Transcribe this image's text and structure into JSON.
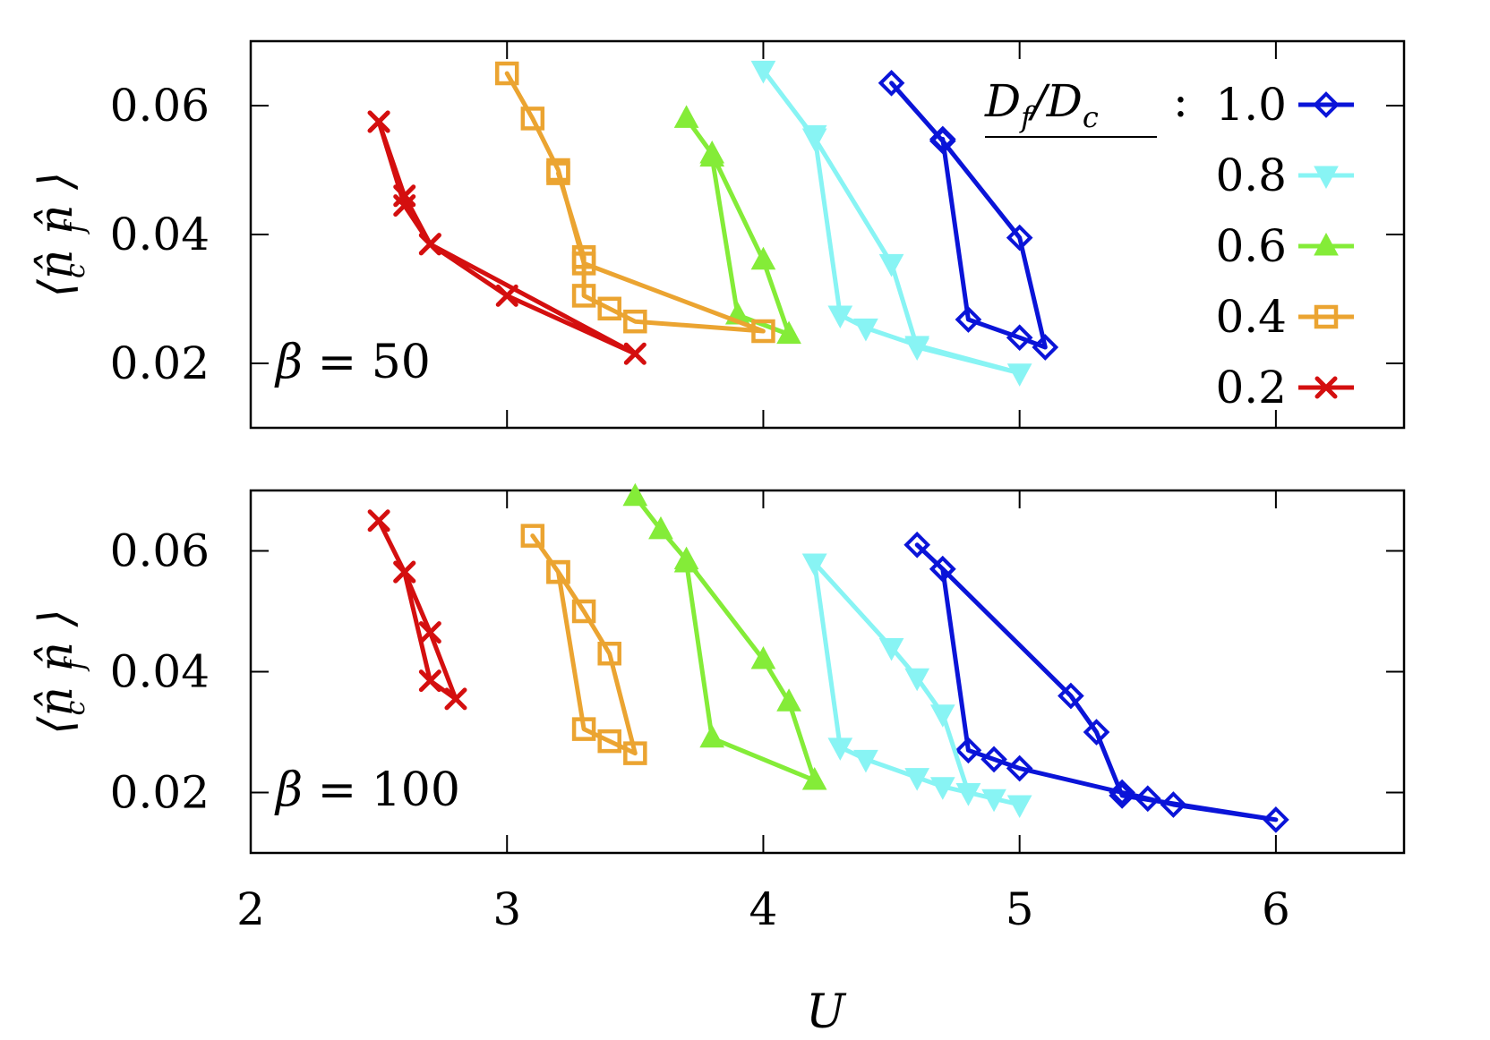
{
  "chart_data": [
    {
      "type": "line",
      "panel": "top",
      "annotation": {
        "symbol": "β",
        "text": " = 50"
      },
      "ylabel": "⟨n̂ n̂ ⟩",
      "ylabel_parts": {
        "c": "c",
        "f": "f"
      },
      "xlabel": "",
      "xlim": [
        2,
        6.5
      ],
      "ylim": [
        0.01,
        0.07
      ],
      "yticks": [
        0.02,
        0.04,
        0.06
      ],
      "ytick_labels": [
        "0.02",
        "0.04",
        "0.06"
      ],
      "xticks": [
        2,
        3,
        4,
        5,
        6
      ],
      "show_xtick_labels": false,
      "grid": false,
      "legend": {
        "title": "D",
        "title_parts": {
          "f_sub": "f",
          "slash": "/D",
          "c_sub": "c",
          "colon": ":"
        },
        "placement": "top-right"
      },
      "series": [
        {
          "name": "1.0",
          "color": "#0a14d8",
          "marker": "diamond",
          "x": [
            4.5,
            4.7,
            5.0,
            5.1,
            5.0,
            4.8,
            4.7
          ],
          "y": [
            0.0635,
            0.0545,
            0.0395,
            0.0225,
            0.024,
            0.0268,
            0.0548
          ]
        },
        {
          "name": "0.8",
          "color": "#88f4f4",
          "marker": "triangle-down",
          "x": [
            4.0,
            4.2,
            4.5,
            4.6,
            5.0,
            4.6,
            4.4,
            4.3,
            4.2
          ],
          "y": [
            0.0655,
            0.055,
            0.0355,
            0.0225,
            0.0185,
            0.0228,
            0.0255,
            0.0275,
            0.0555
          ]
        },
        {
          "name": "0.6",
          "color": "#84ec38",
          "marker": "triangle-up",
          "x": [
            3.7,
            3.8,
            4.0,
            4.1,
            3.9,
            3.8
          ],
          "y": [
            0.058,
            0.0525,
            0.036,
            0.0245,
            0.0275,
            0.052
          ]
        },
        {
          "name": "0.4",
          "color": "#eba431",
          "marker": "square",
          "x": [
            3.0,
            3.1,
            3.2,
            3.3,
            4.0,
            3.5,
            3.4,
            3.3,
            3.3,
            3.2
          ],
          "y": [
            0.065,
            0.058,
            0.05,
            0.0355,
            0.025,
            0.0265,
            0.0285,
            0.0305,
            0.0365,
            0.0495
          ]
        },
        {
          "name": "0.2",
          "color": "#d40f0f",
          "marker": "cross",
          "x": [
            2.5,
            2.6,
            2.7,
            3.0,
            3.5,
            2.7,
            2.6,
            2.5
          ],
          "y": [
            0.0575,
            0.046,
            0.0385,
            0.0305,
            0.0215,
            0.0385,
            0.0445,
            0.0575
          ]
        }
      ]
    },
    {
      "type": "line",
      "panel": "bottom",
      "annotation": {
        "symbol": "β",
        "text": " = 100"
      },
      "ylabel": "⟨n̂ n̂ ⟩",
      "ylabel_parts": {
        "c": "c",
        "f": "f"
      },
      "xlabel": "U",
      "xlim": [
        2,
        6.5
      ],
      "ylim": [
        0.01,
        0.07
      ],
      "yticks": [
        0.02,
        0.04,
        0.06
      ],
      "ytick_labels": [
        "0.02",
        "0.04",
        "0.06"
      ],
      "xticks": [
        2,
        3,
        4,
        5,
        6
      ],
      "xtick_labels": [
        "2",
        "3",
        "4",
        "5",
        "6"
      ],
      "show_xtick_labels": true,
      "grid": false,
      "series": [
        {
          "name": "1.0",
          "color": "#0a14d8",
          "marker": "diamond",
          "x": [
            4.6,
            4.7,
            5.2,
            5.3,
            5.4,
            6.0,
            5.6,
            5.5,
            5.4,
            5.0,
            4.9,
            4.8,
            4.7
          ],
          "y": [
            0.061,
            0.057,
            0.036,
            0.03,
            0.0195,
            0.0155,
            0.018,
            0.019,
            0.02,
            0.024,
            0.0255,
            0.027,
            0.057
          ]
        },
        {
          "name": "0.8",
          "color": "#88f4f4",
          "marker": "triangle-down",
          "x": [
            4.2,
            4.5,
            4.6,
            4.7,
            4.8,
            5.0,
            4.9,
            4.8,
            4.7,
            4.6,
            4.4,
            4.3,
            4.2
          ],
          "y": [
            0.058,
            0.044,
            0.039,
            0.033,
            0.02,
            0.018,
            0.019,
            0.02,
            0.021,
            0.0225,
            0.0255,
            0.0275,
            0.058
          ]
        },
        {
          "name": "0.6",
          "color": "#84ec38",
          "marker": "triangle-up",
          "x": [
            3.5,
            3.6,
            3.7,
            4.0,
            4.1,
            4.2,
            3.8,
            3.7
          ],
          "y": [
            0.069,
            0.0635,
            0.0585,
            0.042,
            0.035,
            0.022,
            0.029,
            0.058
          ]
        },
        {
          "name": "0.4",
          "color": "#eba431",
          "marker": "square",
          "x": [
            3.1,
            3.2,
            3.3,
            3.4,
            3.5,
            3.4,
            3.3,
            3.2
          ],
          "y": [
            0.0625,
            0.0565,
            0.05,
            0.043,
            0.0265,
            0.0285,
            0.0305,
            0.0565
          ]
        },
        {
          "name": "0.2",
          "color": "#d40f0f",
          "marker": "cross",
          "x": [
            2.5,
            2.6,
            2.7,
            2.8,
            2.7,
            2.6
          ],
          "y": [
            0.065,
            0.0565,
            0.0465,
            0.0355,
            0.0385,
            0.0565
          ]
        }
      ]
    }
  ]
}
